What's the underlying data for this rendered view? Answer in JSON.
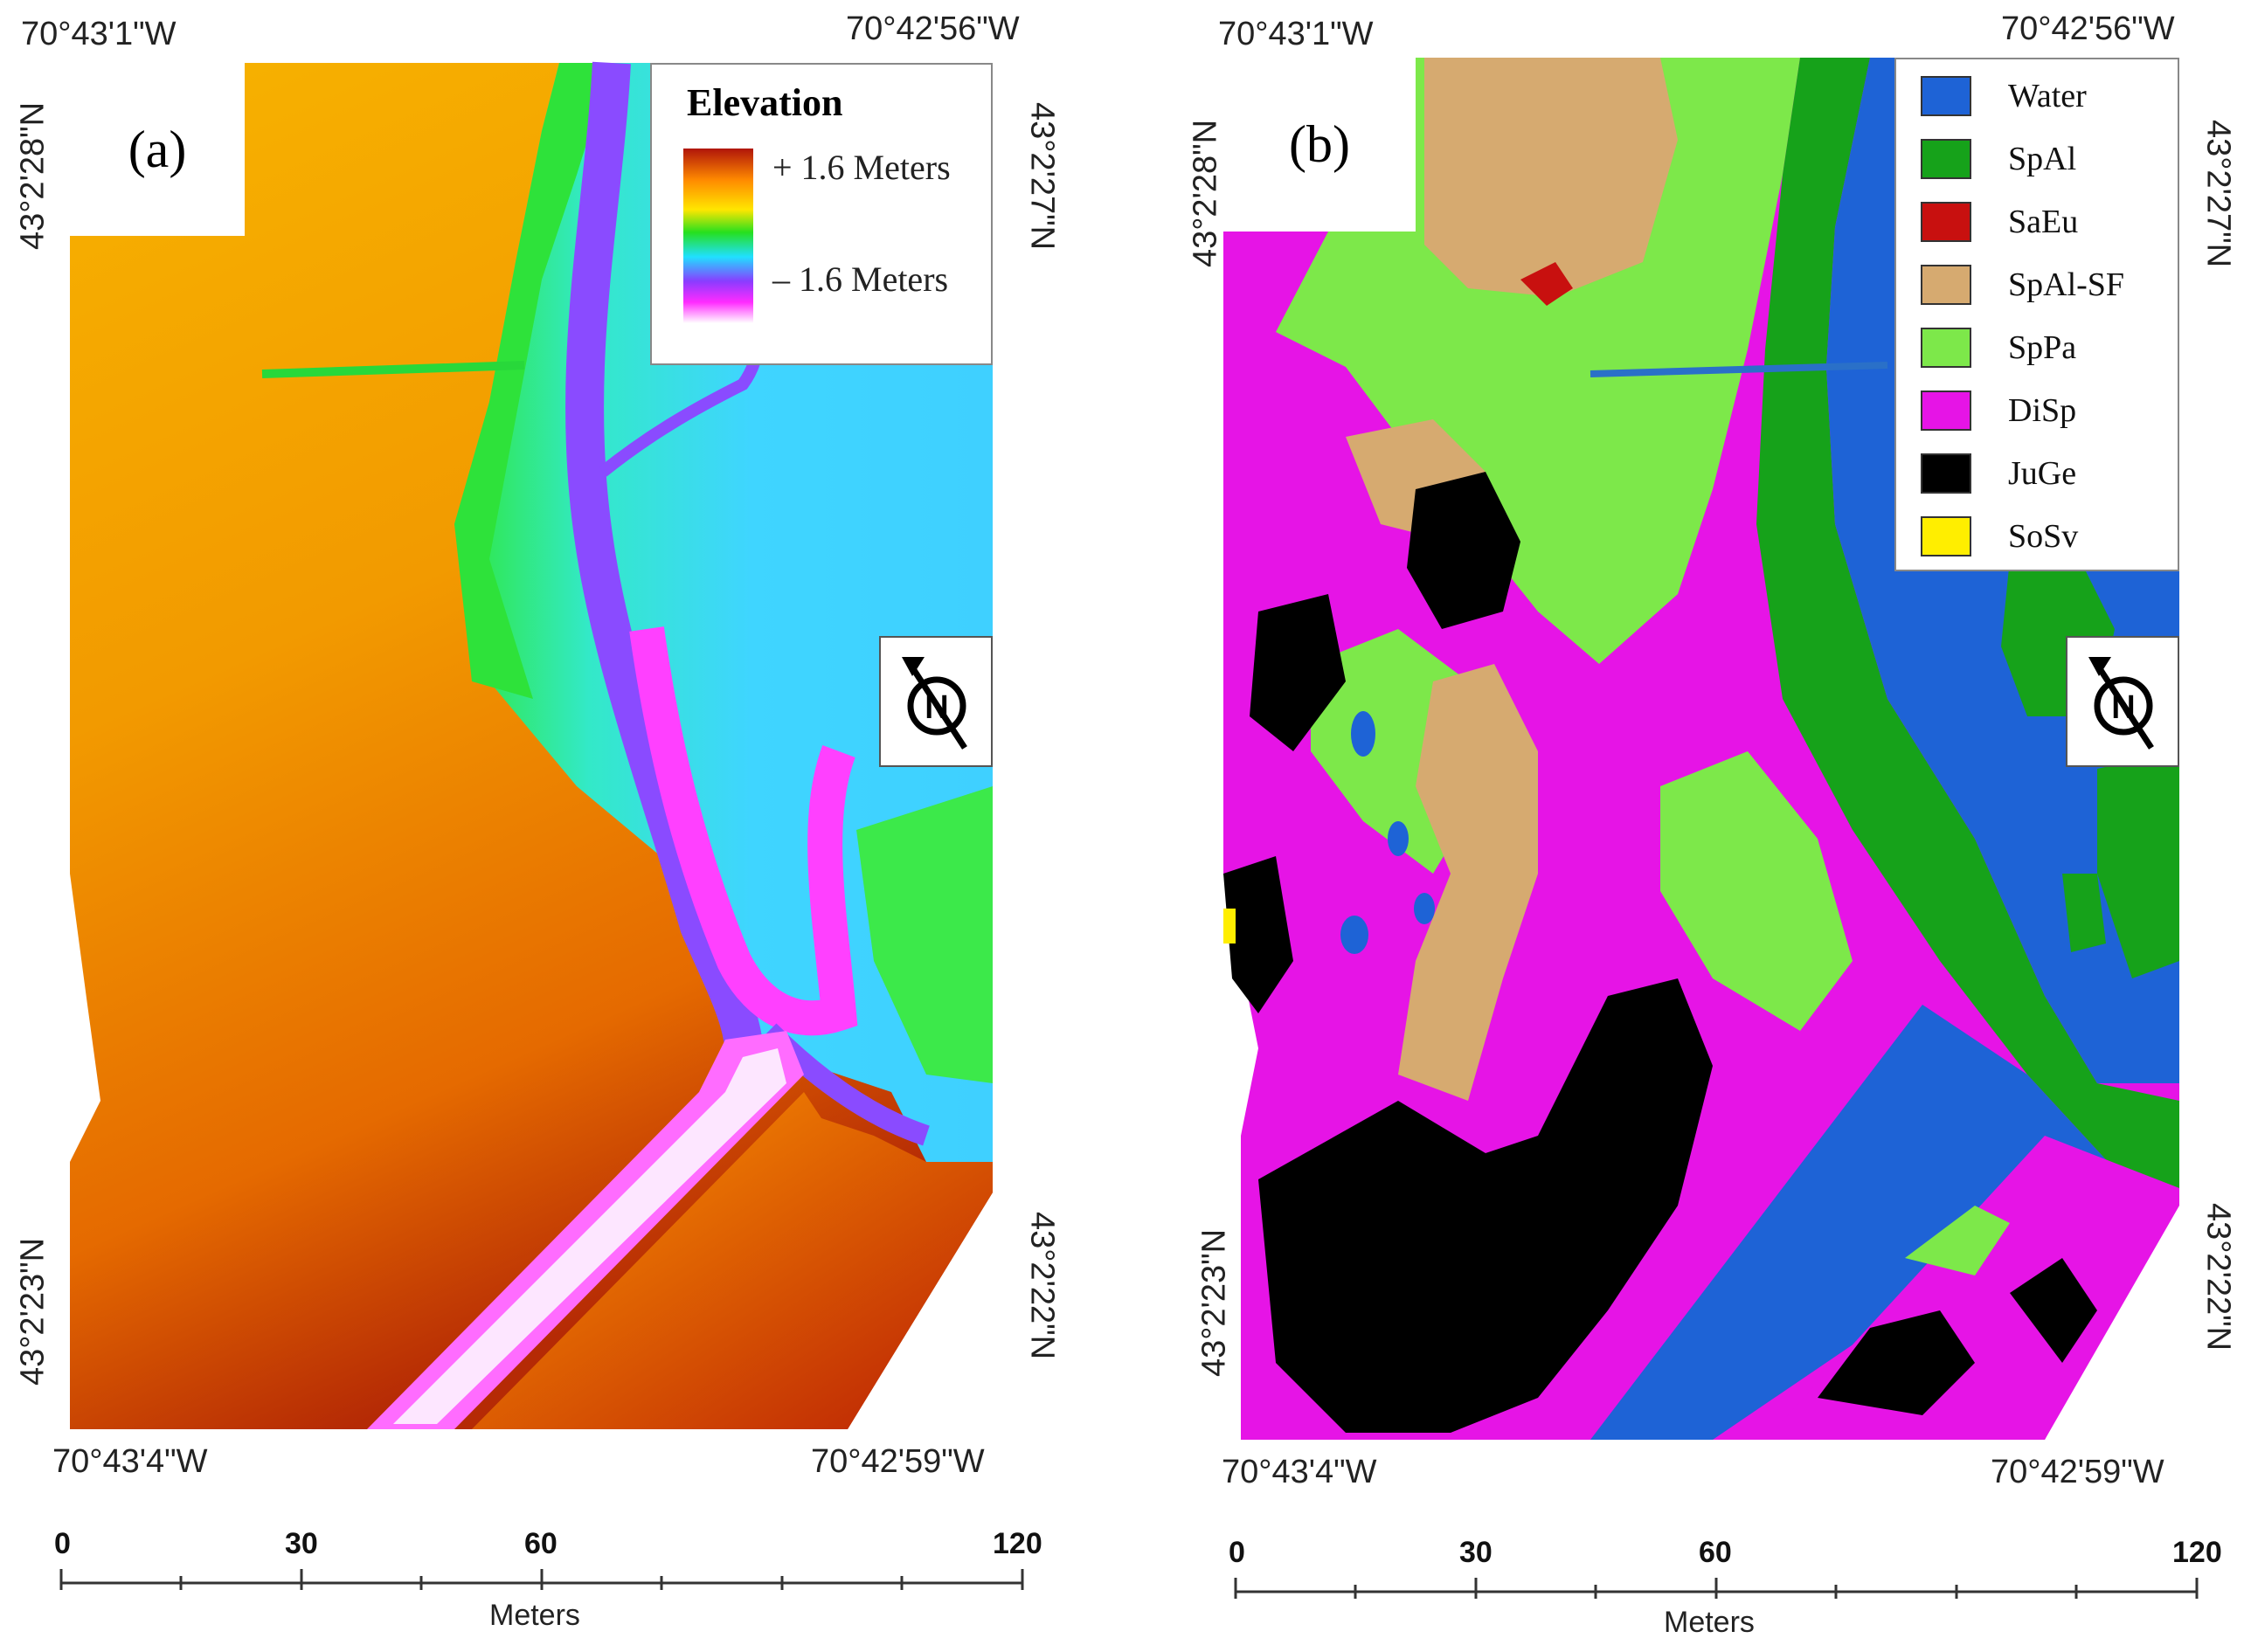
{
  "panel_a": {
    "label": "(a)",
    "coords": {
      "top_left": "70°43'1\"W",
      "top_right": "70°42'56\"W",
      "bottom_left": "70°43'4\"W",
      "bottom_right": "70°42'59\"W",
      "left_top": "43°2'28\"N",
      "left_bottom": "43°2'23\"N",
      "right_top": "43°2'27\"N",
      "right_bottom": "43°2'22\"N"
    },
    "legend": {
      "title": "Elevation",
      "high": "+ 1.6 Meters",
      "low": "– 1.6 Meters",
      "ramp_colors": [
        "#b0150a",
        "#ff8a00",
        "#ffe600",
        "#26e01e",
        "#20e0ff",
        "#8a3cff",
        "#ff2bff",
        "#ffffff"
      ]
    },
    "north_arrow": {
      "icon": "north-arrow-icon",
      "letter": "N"
    },
    "scale": {
      "ticks": [
        "0",
        "30",
        "60",
        "120"
      ],
      "unit": "Meters"
    }
  },
  "panel_b": {
    "label": "(b)",
    "coords": {
      "top_left": "70°43'1\"W",
      "top_right": "70°42'56\"W",
      "bottom_left": "70°43'4\"W",
      "bottom_right": "70°42'59\"W",
      "left_top": "43°2'28\"N",
      "left_bottom": "43°2'23\"N",
      "right_top": "43°2'27\"N",
      "right_bottom": "43°2'22\"N"
    },
    "legend": [
      {
        "label": "Water",
        "color": "#1e63d6"
      },
      {
        "label": "SpAl",
        "color": "#16a21a"
      },
      {
        "label": "SaEu",
        "color": "#c8100f"
      },
      {
        "label": "SpAl-SF",
        "color": "#d6aa70"
      },
      {
        "label": "SpPa",
        "color": "#7de84a"
      },
      {
        "label": "DiSp",
        "color": "#e614e6"
      },
      {
        "label": "JuGe",
        "color": "#000000"
      },
      {
        "label": "SoSv",
        "color": "#ffee00"
      }
    ],
    "north_arrow": {
      "icon": "north-arrow-icon",
      "letter": "N"
    },
    "scale": {
      "ticks": [
        "0",
        "30",
        "60",
        "120"
      ],
      "unit": "Meters"
    }
  }
}
